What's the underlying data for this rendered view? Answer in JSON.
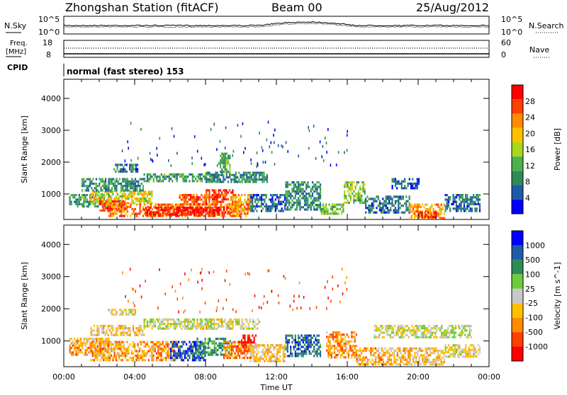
{
  "header": {
    "title": "Zhongshan Station (fitACF)",
    "beam": "Beam 00",
    "date": "25/Aug/2012"
  },
  "top_strip": {
    "left_label": "N.Sky",
    "right_label": "N.Search",
    "left_ticks": [
      "10^5",
      "10^0"
    ],
    "right_ticks": [
      "10^5",
      "10^0"
    ]
  },
  "freq_strip": {
    "left_label_line1": "Freq.",
    "left_label_line2": "[MHz]",
    "right_label": "Nave",
    "left_ticks": [
      "18",
      "8"
    ],
    "right_ticks": [
      "60",
      "0"
    ]
  },
  "cpid": {
    "label": "CPID",
    "value": "normal (fast stereo) 153"
  },
  "x_axis": {
    "title": "Time UT",
    "ticks": [
      "00:00",
      "04:00",
      "08:00",
      "12:00",
      "16:00",
      "20:00",
      "00:00"
    ]
  },
  "colors": {
    "power_scale": [
      "#0000ff",
      "#1e5aa8",
      "#2f8a5a",
      "#4cb04c",
      "#a8d81e",
      "#ffc000",
      "#ff8c00",
      "#ff4000",
      "#ff0000"
    ],
    "velocity_scale": [
      "#ff0000",
      "#ff4000",
      "#ff8c00",
      "#ffc000",
      "#c8c8c8",
      "#6ccc3c",
      "#2f8a5a",
      "#1e5aa8",
      "#0000ff"
    ]
  },
  "chart_data": [
    {
      "type": "heatmap",
      "panel": "power",
      "ylabel": "Slant Range [km]",
      "y_ticks": [
        "1000",
        "2000",
        "3000",
        "4000"
      ],
      "ylim": [
        200,
        4600
      ],
      "xlim_hours": [
        0,
        24
      ],
      "colorbar": {
        "label": "Power [dB]",
        "ticks": [
          "4",
          "8",
          "12",
          "16",
          "20",
          "24",
          "28"
        ],
        "range": [
          0,
          32
        ]
      },
      "regions": [
        {
          "x0": 0.3,
          "x1": 2.5,
          "y0": 600,
          "y1": 1000,
          "v": 10
        },
        {
          "x0": 1.5,
          "x1": 5.0,
          "y0": 700,
          "y1": 1100,
          "v": 18
        },
        {
          "x0": 2.0,
          "x1": 3.5,
          "y0": 500,
          "y1": 800,
          "v": 26
        },
        {
          "x0": 2.5,
          "x1": 10.5,
          "y0": 300,
          "y1": 700,
          "v": 24
        },
        {
          "x0": 4.5,
          "x1": 9.5,
          "y0": 350,
          "y1": 600,
          "v": 30
        },
        {
          "x0": 6.5,
          "x1": 9.0,
          "y0": 650,
          "y1": 1000,
          "v": 26
        },
        {
          "x0": 8.0,
          "x1": 9.5,
          "y0": 800,
          "y1": 1150,
          "v": 28
        },
        {
          "x0": 9.3,
          "x1": 10.7,
          "y0": 450,
          "y1": 1000,
          "v": 22
        },
        {
          "x0": 1.0,
          "x1": 4.5,
          "y0": 1100,
          "y1": 1500,
          "v": 9
        },
        {
          "x0": 2.8,
          "x1": 4.2,
          "y0": 1700,
          "y1": 1950,
          "v": 7
        },
        {
          "x0": 4.5,
          "x1": 8.5,
          "y0": 1400,
          "y1": 1650,
          "v": 11
        },
        {
          "x0": 8.0,
          "x1": 11.5,
          "y0": 1400,
          "y1": 1700,
          "v": 9
        },
        {
          "x0": 8.8,
          "x1": 9.4,
          "y0": 1700,
          "y1": 2300,
          "v": 12
        },
        {
          "x0": 10.5,
          "x1": 12.5,
          "y0": 500,
          "y1": 1000,
          "v": 6
        },
        {
          "x0": 12.5,
          "x1": 14.5,
          "y0": 500,
          "y1": 1400,
          "v": 9
        },
        {
          "x0": 14.5,
          "x1": 15.8,
          "y0": 400,
          "y1": 700,
          "v": 13
        },
        {
          "x0": 15.8,
          "x1": 17.0,
          "y0": 700,
          "y1": 1400,
          "v": 14
        },
        {
          "x0": 17.0,
          "x1": 19.5,
          "y0": 450,
          "y1": 950,
          "v": 7
        },
        {
          "x0": 19.5,
          "x1": 21.5,
          "y0": 250,
          "y1": 700,
          "v": 22
        },
        {
          "x0": 20.0,
          "x1": 21.0,
          "y0": 250,
          "y1": 450,
          "v": 29
        },
        {
          "x0": 21.5,
          "x1": 23.5,
          "y0": 500,
          "y1": 1000,
          "v": 7
        },
        {
          "x0": 18.5,
          "x1": 20.0,
          "y0": 1150,
          "y1": 1500,
          "v": 5
        }
      ]
    },
    {
      "type": "heatmap",
      "panel": "velocity",
      "ylabel": "Slant Range [km]",
      "y_ticks": [
        "1000",
        "2000",
        "3000",
        "4000"
      ],
      "ylim": [
        200,
        4600
      ],
      "xlim_hours": [
        0,
        24
      ],
      "colorbar": {
        "label": "Velocity [m s^-1]",
        "ticks": [
          "-1000",
          "-500",
          "-100",
          "-25",
          "25",
          "100",
          "500",
          "1000"
        ],
        "range": [
          -1000,
          1000
        ]
      },
      "regions": [
        {
          "x0": 0.3,
          "x1": 2.5,
          "y0": 600,
          "y1": 1100,
          "v": -300
        },
        {
          "x0": 1.5,
          "x1": 6.5,
          "y0": 400,
          "y1": 1000,
          "v": -350
        },
        {
          "x0": 6.0,
          "x1": 8.0,
          "y0": 400,
          "y1": 1000,
          "v": 700
        },
        {
          "x0": 7.5,
          "x1": 9.5,
          "y0": 600,
          "y1": 1100,
          "v": 400
        },
        {
          "x0": 9.0,
          "x1": 10.5,
          "y0": 500,
          "y1": 1000,
          "v": -500
        },
        {
          "x0": 10.0,
          "x1": 10.8,
          "y0": 800,
          "y1": 1200,
          "v": -900
        },
        {
          "x0": 1.5,
          "x1": 4.5,
          "y0": 1150,
          "y1": 1500,
          "v": -200
        },
        {
          "x0": 2.5,
          "x1": 4.0,
          "y0": 1800,
          "y1": 2000,
          "v": -60
        },
        {
          "x0": 4.5,
          "x1": 8.5,
          "y0": 1400,
          "y1": 1700,
          "v": 10
        },
        {
          "x0": 8.0,
          "x1": 11.0,
          "y0": 1400,
          "y1": 1700,
          "v": -60
        },
        {
          "x0": 10.5,
          "x1": 12.5,
          "y0": 400,
          "y1": 900,
          "v": -200
        },
        {
          "x0": 12.5,
          "x1": 14.5,
          "y0": 500,
          "y1": 1200,
          "v": 600
        },
        {
          "x0": 14.8,
          "x1": 16.5,
          "y0": 500,
          "y1": 1300,
          "v": -400
        },
        {
          "x0": 16.5,
          "x1": 19.5,
          "y0": 300,
          "y1": 800,
          "v": -300
        },
        {
          "x0": 19.5,
          "x1": 21.5,
          "y0": 250,
          "y1": 800,
          "v": -200
        },
        {
          "x0": 21.5,
          "x1": 23.5,
          "y0": 500,
          "y1": 900,
          "v": -80
        },
        {
          "x0": 17.5,
          "x1": 23.0,
          "y0": 1100,
          "y1": 1500,
          "v": 5
        }
      ]
    }
  ]
}
